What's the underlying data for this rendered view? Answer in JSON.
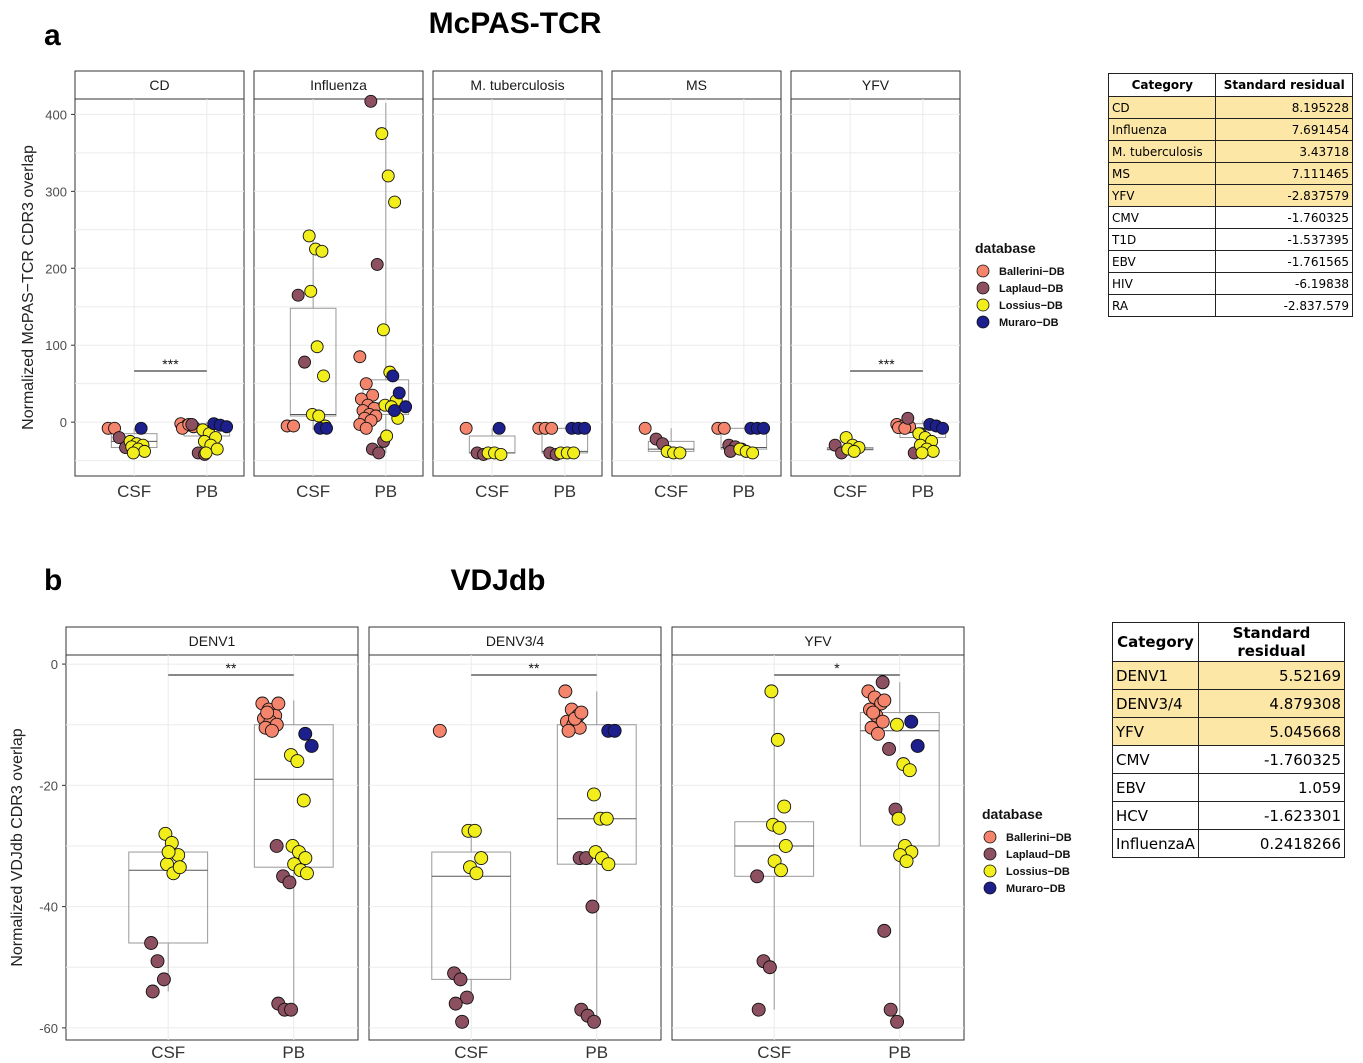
{
  "figure": {
    "panel_a": {
      "letter": "a",
      "title": "McPAS-TCR"
    },
    "panel_b": {
      "letter": "b",
      "title": "VDJdb"
    }
  },
  "colors": {
    "Ballerini-DB": "#f4846c",
    "Laplaud-DB": "#8c5060",
    "Lossius-DB": "#f2ee1c",
    "Muraro-DB": "#1c1f8c",
    "highlight": "#fde7a6"
  },
  "chart_data": [
    {
      "type": "box+scatter",
      "ylabel": "Normalized McPAS−TCR CDR3 overlap",
      "ylim": [
        -70,
        420
      ],
      "yticks": [
        0,
        100,
        200,
        300,
        400
      ],
      "groups": [
        "CSF",
        "PB"
      ],
      "legend": {
        "title": "database",
        "entries": [
          "Ballerini−DB",
          "Laplaud−DB",
          "Lossius−DB",
          "Muraro−DB"
        ],
        "position": "right"
      },
      "facets": [
        {
          "name": "CD",
          "sig": "***",
          "box": {
            "CSF": [
              -40,
              -33,
              -25,
              -15,
              -8
            ],
            "PB": [
              -43,
              -18,
              -8,
              -2,
              0
            ]
          },
          "points": {
            "CSF": {
              "Ballerini-DB": [
                -8,
                -8
              ],
              "Laplaud-DB": [
                -20,
                -33
              ],
              "Lossius-DB": [
                -25,
                -28,
                -30,
                -32,
                -35,
                -38,
                -40
              ],
              "Muraro-DB": [
                -8
              ]
            },
            "PB": {
              "Ballerini-DB": [
                -2,
                -4,
                -6,
                -8,
                -3
              ],
              "Laplaud-DB": [
                -3,
                -40,
                -42
              ],
              "Lossius-DB": [
                -10,
                -15,
                -20,
                -25,
                -30,
                -35,
                -40
              ],
              "Muraro-DB": [
                -2,
                -4,
                -6
              ]
            }
          }
        },
        {
          "name": "Influenza",
          "sig": "",
          "box": {
            "CSF": [
              -10,
              8,
              10,
              148,
              240
            ],
            "PB": [
              -40,
              10,
              25,
              55,
              415
            ]
          },
          "points": {
            "CSF": {
              "Ballerini-DB": [
                -5,
                -5
              ],
              "Laplaud-DB": [
                165,
                78
              ],
              "Lossius-DB": [
                242,
                225,
                222,
                170,
                98,
                60,
                10,
                8,
                -5
              ],
              "Muraro-DB": [
                -8,
                -8
              ]
            },
            "PB": {
              "Ballerini-DB": [
                85,
                50,
                35,
                30,
                22,
                18,
                15,
                10,
                8,
                5,
                2,
                -3,
                -8
              ],
              "Laplaud-DB": [
                417,
                205,
                -25,
                -35,
                -40
              ],
              "Lossius-DB": [
                375,
                320,
                286,
                120,
                65,
                28,
                22,
                20,
                5,
                -18
              ],
              "Muraro-DB": [
                60,
                38,
                20,
                15
              ]
            }
          }
        },
        {
          "name": "M. tuberculosis",
          "sig": "",
          "box": {
            "CSF": [
              -42,
              -40,
              -40,
              -18,
              -8
            ],
            "PB": [
              -42,
              -40,
              -38,
              -8,
              -8
            ]
          },
          "points": {
            "CSF": {
              "Ballerini-DB": [
                -8
              ],
              "Laplaud-DB": [
                -40,
                -42
              ],
              "Lossius-DB": [
                -40,
                -40,
                -42
              ],
              "Muraro-DB": [
                -8
              ]
            },
            "PB": {
              "Ballerini-DB": [
                -8,
                -8,
                -8
              ],
              "Laplaud-DB": [
                -40,
                -42
              ],
              "Lossius-DB": [
                -40,
                -40,
                -40
              ],
              "Muraro-DB": [
                -8,
                -8,
                -8
              ]
            }
          }
        },
        {
          "name": "MS",
          "sig": "",
          "box": {
            "CSF": [
              -40,
              -38,
              -35,
              -25,
              -8
            ],
            "PB": [
              -40,
              -35,
              -33,
              -8,
              -8
            ]
          },
          "points": {
            "CSF": {
              "Ballerini-DB": [
                -8
              ],
              "Laplaud-DB": [
                -22,
                -28
              ],
              "Lossius-DB": [
                -38,
                -40,
                -40
              ],
              "Muraro-DB": []
            },
            "PB": {
              "Ballerini-DB": [
                -8,
                -8
              ],
              "Laplaud-DB": [
                -30,
                -32,
                -35,
                -38
              ],
              "Lossius-DB": [
                -35,
                -38,
                -40
              ],
              "Muraro-DB": [
                -8,
                -8,
                -8
              ]
            }
          }
        },
        {
          "name": "YFV",
          "sig": "***",
          "box": {
            "CSF": [
              -38,
              -36,
              -35,
              -33,
              -20
            ],
            "PB": [
              -40,
              -20,
              -8,
              -2,
              2
            ]
          },
          "points": {
            "CSF": {
              "Ballerini-DB": [],
              "Laplaud-DB": [
                -30,
                -40
              ],
              "Lossius-DB": [
                -20,
                -30,
                -33,
                -35,
                -38
              ],
              "Muraro-DB": []
            },
            "PB": {
              "Ballerini-DB": [
                -3,
                -5,
                -6,
                -7,
                -8
              ],
              "Laplaud-DB": [
                5,
                -40,
                -15
              ],
              "Lossius-DB": [
                -15,
                -20,
                -25,
                -30,
                -35,
                -38,
                -40
              ],
              "Muraro-DB": [
                -3,
                -5,
                -8
              ]
            }
          }
        }
      ]
    },
    {
      "type": "box+scatter",
      "ylabel": "Normalized VDJdb CDR3 overlap",
      "ylim": [
        -62,
        1.5
      ],
      "yticks": [
        0,
        -20,
        -40,
        -60
      ],
      "groups": [
        "CSF",
        "PB"
      ],
      "legend": {
        "title": "database",
        "entries": [
          "Ballerini−DB",
          "Laplaud−DB",
          "Lossius−DB",
          "Muraro−DB"
        ],
        "position": "right"
      },
      "facets": [
        {
          "name": "DENV1",
          "sig": "**",
          "box": {
            "CSF": [
              -54,
              -46,
              -34,
              -31,
              -28
            ],
            "PB": [
              -57,
              -33.5,
              -19,
              -10,
              -6
            ]
          },
          "points": {
            "CSF": {
              "Ballerini-DB": [],
              "Laplaud-DB": [
                -46,
                -49,
                -52,
                -54
              ],
              "Lossius-DB": [
                -28,
                -29.5,
                -31.5,
                -33,
                -34.5,
                -33.5,
                -31
              ],
              "Muraro-DB": []
            },
            "PB": {
              "Ballerini-DB": [
                -6.5,
                -7.5,
                -8.5,
                -9,
                -9.5,
                -10,
                -10.5,
                -11,
                -6.5,
                -8
              ],
              "Laplaud-DB": [
                -30,
                -35,
                -36,
                -56,
                -57,
                -57
              ],
              "Lossius-DB": [
                -15,
                -16,
                -22.5,
                -30,
                -31,
                -32,
                -33,
                -34,
                -34.5
              ],
              "Muraro-DB": [
                -11.5,
                -13.5
              ]
            }
          }
        },
        {
          "name": "DENV3/4",
          "sig": "**",
          "box": {
            "CSF": [
              -56,
              -52,
              -35,
              -31,
              -28
            ],
            "PB": [
              -59,
              -33,
              -25.5,
              -10,
              -4.5
            ]
          },
          "points": {
            "CSF": {
              "Ballerini-DB": [
                -11
              ],
              "Laplaud-DB": [
                -51,
                -52,
                -55,
                -56,
                -59
              ],
              "Lossius-DB": [
                -27.5,
                -27.5,
                -32,
                -33.5,
                -34.5
              ],
              "Muraro-DB": []
            },
            "PB": {
              "Ballerini-DB": [
                -4.5,
                -7.5,
                -8.5,
                -9.5,
                -10,
                -10.5,
                -11,
                -9,
                -8
              ],
              "Laplaud-DB": [
                -32,
                -32,
                -40,
                -57,
                -58,
                -59
              ],
              "Lossius-DB": [
                -21.5,
                -25.5,
                -25.5,
                -31,
                -32,
                -33
              ],
              "Muraro-DB": [
                -11,
                -11
              ]
            }
          }
        },
        {
          "name": "YFV",
          "sig": "*",
          "box": {
            "CSF": [
              -57,
              -35,
              -30,
              -26,
              -4.5
            ],
            "PB": [
              -60,
              -30,
              -11,
              -8,
              -3
            ]
          },
          "points": {
            "CSF": {
              "Ballerini-DB": [],
              "Laplaud-DB": [
                -35,
                -49,
                -50,
                -57
              ],
              "Lossius-DB": [
                -4.5,
                -12.5,
                -23.5,
                -26.5,
                -27,
                -30,
                -32.5,
                -34
              ],
              "Muraro-DB": []
            },
            "PB": {
              "Ballerini-DB": [
                -4.5,
                -5.5,
                -6.5,
                -7.5,
                -8.5,
                -9.5,
                -10.5,
                -11.5,
                -6,
                -8
              ],
              "Laplaud-DB": [
                -3,
                -14,
                -24,
                -44,
                -57,
                -59
              ],
              "Lossius-DB": [
                -10,
                -16.5,
                -17.5,
                -25.5,
                -30,
                -31,
                -31.5,
                -32.5
              ],
              "Muraro-DB": [
                -9.5,
                -13.5
              ]
            }
          }
        }
      ]
    }
  ],
  "tables": {
    "mcpas": {
      "headers": [
        "Category",
        "Standard residual"
      ],
      "rows": [
        [
          "CD",
          "8.195228"
        ],
        [
          "Influenza",
          "7.691454"
        ],
        [
          "M. tuberculosis",
          "3.43718"
        ],
        [
          "MS",
          "7.111465"
        ],
        [
          "YFV",
          "-2.837579"
        ],
        [
          "CMV",
          "-1.760325"
        ],
        [
          "T1D",
          "-1.537395"
        ],
        [
          "EBV",
          "-1.761565"
        ],
        [
          "HIV",
          "-6.19838"
        ],
        [
          "RA",
          "-2.837.579"
        ]
      ],
      "highlighted_rows": 5
    },
    "vdjdb": {
      "headers": [
        "Category",
        "Standard residual"
      ],
      "rows": [
        [
          "DENV1",
          "5.52169"
        ],
        [
          "DENV3/4",
          "4.879308"
        ],
        [
          "YFV",
          "5.045668"
        ],
        [
          "CMV",
          "-1.760325"
        ],
        [
          "EBV",
          "1.059"
        ],
        [
          "HCV",
          "-1.623301"
        ],
        [
          "InfluenzaA",
          "0.2418266"
        ]
      ],
      "highlighted_rows": 3
    }
  }
}
